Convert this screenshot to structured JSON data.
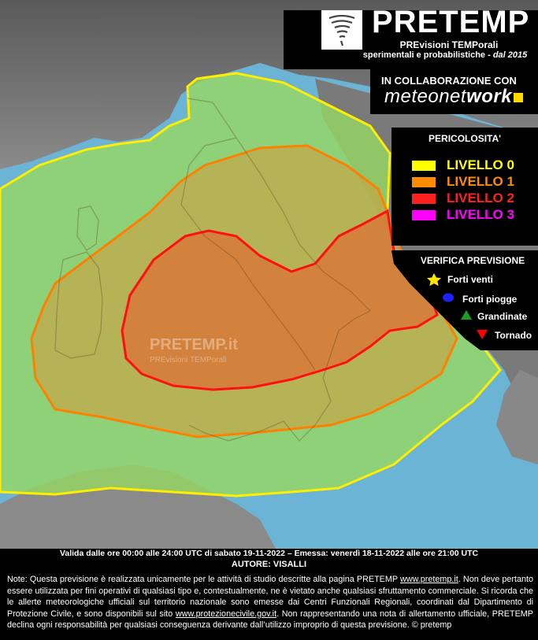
{
  "header": {
    "title": "PRETEMP",
    "subtitle_line1": "PREvisioni TEMPorali",
    "subtitle_line2": "sperimentali e probabilistiche - ",
    "subtitle_since": "dal 2015",
    "collaboration": "IN COLLABORAZIONE CON",
    "partner_prefix": "meteonet",
    "partner_suffix": "work"
  },
  "legend": {
    "title": "PERICOLOSITA'",
    "levels": [
      {
        "label": "LIVELLO ",
        "num": "0",
        "color": "#ffff00"
      },
      {
        "label": "LIVELLO ",
        "num": "1",
        "color": "#ff8c00"
      },
      {
        "label": "LIVELLO ",
        "num": "2",
        "color": "#ff2020"
      },
      {
        "label": "LIVELLO ",
        "num": "3",
        "color": "#ff00ff"
      }
    ]
  },
  "verification": {
    "title": "VERIFICA PREVISIONE",
    "items": [
      {
        "label": "Forti venti",
        "icon": "star-icon",
        "color": "#ffe600"
      },
      {
        "label": "Forti piogge",
        "icon": "circle-icon",
        "color": "#2020ff"
      },
      {
        "label": "Grandinate",
        "icon": "triangle-up-icon",
        "color": "#1e9e1e"
      },
      {
        "label": "Tornado",
        "icon": "triangle-down-icon",
        "color": "#ff0000"
      }
    ]
  },
  "watermark": {
    "title": "PRETEMP.it",
    "sub": "PREvisioni TEMPorali"
  },
  "footer": {
    "validity": "Valida dalle ore 00:00 alle 24:00 UTC di sabato 19-11-2022 – Emessa: venerdì 18-11-2022 alle ore 21:00 UTC",
    "author": "AUTORE: VISALLI",
    "note_part1": "Note: Questa previsione è realizzata unicamente per le attività di studio descritte alla pagina PRETEMP ",
    "note_link1": "www.pretemp.it",
    "note_part2": ". Non deve pertanto essere utilizzata per fini operativi di qualsiasi tipo e, contestualmente, ne è vietato anche qualsiasi sfruttamento commerciale. Si ricorda che le allerte meteorologiche ufficiali sul territorio nazionale sono emesse dai Centri Funzionali Regionali, coordinati dal Dipartimento di Protezione Civile, e sono disponibili sul sito ",
    "note_link2": "www.protezionecivile.gov.it",
    "note_part3": ". Non rappresentando una nota di allertamento ufficiale, PRETEMP declina ogni responsabilità per qualsiasi conseguenza derivante dall’utilizzo improprio di questa previsione.  © pretemp"
  }
}
